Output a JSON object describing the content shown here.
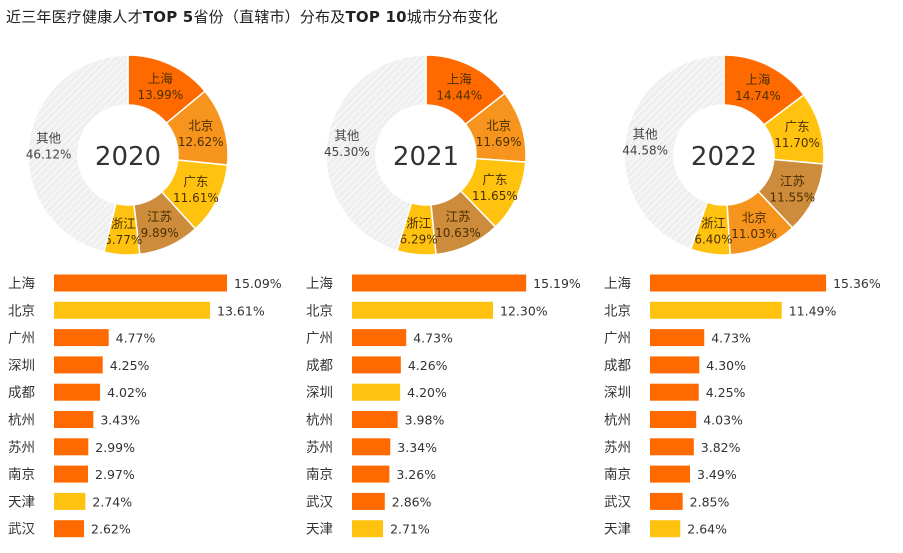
{
  "title": {
    "text_1": "近三年医疗健康人才",
    "bold_1": "TOP 5",
    "text_2": "省份（直辖市）分布及",
    "bold_2": "TOP 10",
    "text_3": "城市分布变化"
  },
  "colors": {
    "orange": "#FF6A00",
    "light_orange": "#F7941D",
    "yellow": "#FFC20E",
    "brown": "#CD8B3C",
    "other_bg": "#EFEFEF",
    "other_hatch": "#FFFFFF"
  },
  "chart_data": [
    {
      "type": "pie",
      "variant": "donut",
      "year": "2020",
      "slices": [
        {
          "name": "上海",
          "value": 13.99,
          "label": "13.99%",
          "color": "#FF6A00"
        },
        {
          "name": "北京",
          "value": 12.62,
          "label": "12.62%",
          "color": "#F7941D"
        },
        {
          "name": "广东",
          "value": 11.61,
          "label": "11.61%",
          "color": "#FFC20E"
        },
        {
          "name": "江苏",
          "value": 9.89,
          "label": "9.89%",
          "color": "#CD8B3C"
        },
        {
          "name": "浙江",
          "value": 5.77,
          "label": "5.77%",
          "color": "#FFC20E"
        },
        {
          "name": "其他",
          "value": 46.12,
          "label": "46.12%",
          "color": "#EFEFEF"
        }
      ]
    },
    {
      "type": "pie",
      "variant": "donut",
      "year": "2021",
      "slices": [
        {
          "name": "上海",
          "value": 14.44,
          "label": "14.44%",
          "color": "#FF6A00"
        },
        {
          "name": "北京",
          "value": 11.69,
          "label": "11.69%",
          "color": "#F7941D"
        },
        {
          "name": "广东",
          "value": 11.65,
          "label": "11.65%",
          "color": "#FFC20E"
        },
        {
          "name": "江苏",
          "value": 10.63,
          "label": "10.63%",
          "color": "#CD8B3C"
        },
        {
          "name": "浙江",
          "value": 6.29,
          "label": "6.29%",
          "color": "#FFC20E"
        },
        {
          "name": "其他",
          "value": 45.3,
          "label": "45.30%",
          "color": "#EFEFEF"
        }
      ]
    },
    {
      "type": "pie",
      "variant": "donut",
      "year": "2022",
      "slices": [
        {
          "name": "上海",
          "value": 14.74,
          "label": "14.74%",
          "color": "#FF6A00"
        },
        {
          "name": "广东",
          "value": 11.7,
          "label": "11.70%",
          "color": "#FFC20E"
        },
        {
          "name": "江苏",
          "value": 11.55,
          "label": "11.55%",
          "color": "#CD8B3C"
        },
        {
          "name": "北京",
          "value": 11.03,
          "label": "11.03%",
          "color": "#F7941D"
        },
        {
          "name": "浙江",
          "value": 6.4,
          "label": "6.40%",
          "color": "#FFC20E"
        },
        {
          "name": "其他",
          "value": 44.58,
          "label": "44.58%",
          "color": "#EFEFEF"
        }
      ]
    },
    {
      "type": "bar",
      "orientation": "horizontal",
      "year": "2020",
      "categories": [
        "上海",
        "北京",
        "广州",
        "深圳",
        "成都",
        "杭州",
        "苏州",
        "南京",
        "天津",
        "武汉"
      ],
      "values": [
        15.09,
        13.61,
        4.77,
        4.25,
        4.02,
        3.43,
        2.99,
        2.97,
        2.74,
        2.62
      ],
      "labels": [
        "15.09%",
        "13.61%",
        "4.77%",
        "4.25%",
        "4.02%",
        "3.43%",
        "2.99%",
        "2.97%",
        "2.74%",
        "2.62%"
      ],
      "colors": [
        "#FF6A00",
        "#FFC20E",
        "#FF6A00",
        "#FF6A00",
        "#FF6A00",
        "#FF6A00",
        "#FF6A00",
        "#FF6A00",
        "#FFC20E",
        "#FF6A00"
      ]
    },
    {
      "type": "bar",
      "orientation": "horizontal",
      "year": "2021",
      "categories": [
        "上海",
        "北京",
        "广州",
        "成都",
        "深圳",
        "杭州",
        "苏州",
        "南京",
        "武汉",
        "天津"
      ],
      "values": [
        15.19,
        12.3,
        4.73,
        4.26,
        4.2,
        3.98,
        3.34,
        3.26,
        2.86,
        2.71
      ],
      "labels": [
        "15.19%",
        "12.30%",
        "4.73%",
        "4.26%",
        "4.20%",
        "3.98%",
        "3.34%",
        "3.26%",
        "2.86%",
        "2.71%"
      ],
      "colors": [
        "#FF6A00",
        "#FFC20E",
        "#FF6A00",
        "#FF6A00",
        "#FFC20E",
        "#FF6A00",
        "#FF6A00",
        "#FF6A00",
        "#FF6A00",
        "#FFC20E"
      ]
    },
    {
      "type": "bar",
      "orientation": "horizontal",
      "year": "2022",
      "categories": [
        "上海",
        "北京",
        "广州",
        "成都",
        "深圳",
        "杭州",
        "苏州",
        "南京",
        "武汉",
        "天津"
      ],
      "values": [
        15.36,
        11.49,
        4.73,
        4.3,
        4.25,
        4.03,
        3.82,
        3.49,
        2.85,
        2.64
      ],
      "labels": [
        "15.36%",
        "11.49%",
        "4.73%",
        "4.30%",
        "4.25%",
        "4.03%",
        "3.82%",
        "3.49%",
        "2.85%",
        "2.64%"
      ],
      "colors": [
        "#FF6A00",
        "#FFC20E",
        "#FF6A00",
        "#FF6A00",
        "#FF6A00",
        "#FF6A00",
        "#FF6A00",
        "#FF6A00",
        "#FF6A00",
        "#FFC20E"
      ]
    }
  ]
}
